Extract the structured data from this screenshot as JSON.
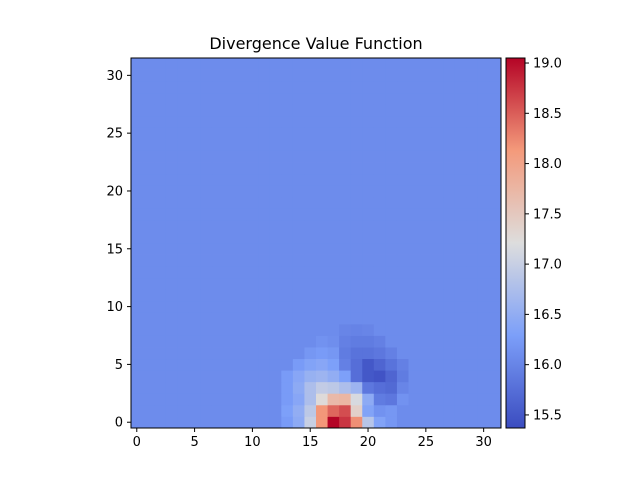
{
  "chart_data": {
    "type": "heatmap",
    "title": "Divergence Value Function",
    "xlabel": "",
    "ylabel": "",
    "grid_size": 32,
    "xlim": [
      -0.5,
      31.5
    ],
    "ylim": [
      -0.5,
      31.5
    ],
    "x_ticks": [
      0,
      5,
      10,
      15,
      20,
      25,
      30
    ],
    "y_ticks": [
      0,
      5,
      10,
      15,
      20,
      25,
      30
    ],
    "origin": "lower",
    "colormap": "coolwarm",
    "color_range": [
      15.37,
      19.05
    ],
    "colorbar_ticks": [
      15.5,
      16.0,
      16.5,
      17.0,
      17.5,
      18.0,
      18.5,
      19.0
    ],
    "baseline_value": 16.08,
    "cells": [
      [
        0,
        17,
        19.05
      ],
      [
        0,
        18,
        18.75
      ],
      [
        0,
        16,
        18.15
      ],
      [
        0,
        19,
        18.2
      ],
      [
        0,
        15,
        17.0
      ],
      [
        0,
        20,
        16.85
      ],
      [
        0,
        14,
        16.45
      ],
      [
        0,
        21,
        16.35
      ],
      [
        0,
        13,
        16.25
      ],
      [
        0,
        22,
        16.2
      ],
      [
        1,
        16,
        18.15
      ],
      [
        1,
        17,
        18.45
      ],
      [
        1,
        18,
        18.6
      ],
      [
        1,
        19,
        17.4
      ],
      [
        1,
        15,
        16.9
      ],
      [
        1,
        20,
        16.35
      ],
      [
        1,
        14,
        16.5
      ],
      [
        1,
        21,
        16.15
      ],
      [
        1,
        13,
        16.3
      ],
      [
        1,
        22,
        16.2
      ],
      [
        2,
        16,
        17.25
      ],
      [
        2,
        17,
        17.7
      ],
      [
        2,
        18,
        17.75
      ],
      [
        2,
        19,
        17.15
      ],
      [
        2,
        15,
        16.75
      ],
      [
        2,
        20,
        16.45
      ],
      [
        2,
        14,
        16.4
      ],
      [
        2,
        21,
        15.9
      ],
      [
        2,
        13,
        16.25
      ],
      [
        2,
        22,
        15.85
      ],
      [
        2,
        23,
        16.15
      ],
      [
        3,
        15,
        16.75
      ],
      [
        3,
        16,
        16.95
      ],
      [
        3,
        17,
        16.9
      ],
      [
        3,
        18,
        16.75
      ],
      [
        3,
        19,
        16.6
      ],
      [
        3,
        14,
        16.45
      ],
      [
        3,
        20,
        15.85
      ],
      [
        3,
        21,
        15.75
      ],
      [
        3,
        22,
        15.7
      ],
      [
        3,
        13,
        16.25
      ],
      [
        3,
        23,
        16.0
      ],
      [
        4,
        14,
        16.4
      ],
      [
        4,
        15,
        16.55
      ],
      [
        4,
        16,
        16.6
      ],
      [
        4,
        17,
        16.5
      ],
      [
        4,
        18,
        16.3
      ],
      [
        4,
        19,
        15.75
      ],
      [
        4,
        20,
        15.5
      ],
      [
        4,
        21,
        15.45
      ],
      [
        4,
        22,
        15.65
      ],
      [
        4,
        23,
        15.9
      ],
      [
        4,
        13,
        16.25
      ],
      [
        5,
        14,
        16.25
      ],
      [
        5,
        15,
        16.35
      ],
      [
        5,
        16,
        16.4
      ],
      [
        5,
        17,
        16.3
      ],
      [
        5,
        18,
        15.95
      ],
      [
        5,
        19,
        15.75
      ],
      [
        5,
        20,
        15.5
      ],
      [
        5,
        21,
        15.65
      ],
      [
        5,
        22,
        15.8
      ],
      [
        5,
        23,
        15.95
      ],
      [
        6,
        15,
        16.2
      ],
      [
        6,
        16,
        16.25
      ],
      [
        6,
        17,
        16.2
      ],
      [
        6,
        18,
        15.9
      ],
      [
        6,
        19,
        15.8
      ],
      [
        6,
        20,
        15.8
      ],
      [
        6,
        21,
        15.85
      ],
      [
        6,
        22,
        15.95
      ],
      [
        7,
        16,
        16.15
      ],
      [
        7,
        17,
        16.1
      ],
      [
        7,
        18,
        15.95
      ],
      [
        7,
        19,
        15.9
      ],
      [
        7,
        20,
        15.9
      ],
      [
        7,
        21,
        15.95
      ],
      [
        8,
        18,
        16.0
      ],
      [
        8,
        19,
        15.98
      ],
      [
        8,
        20,
        16.0
      ]
    ]
  }
}
